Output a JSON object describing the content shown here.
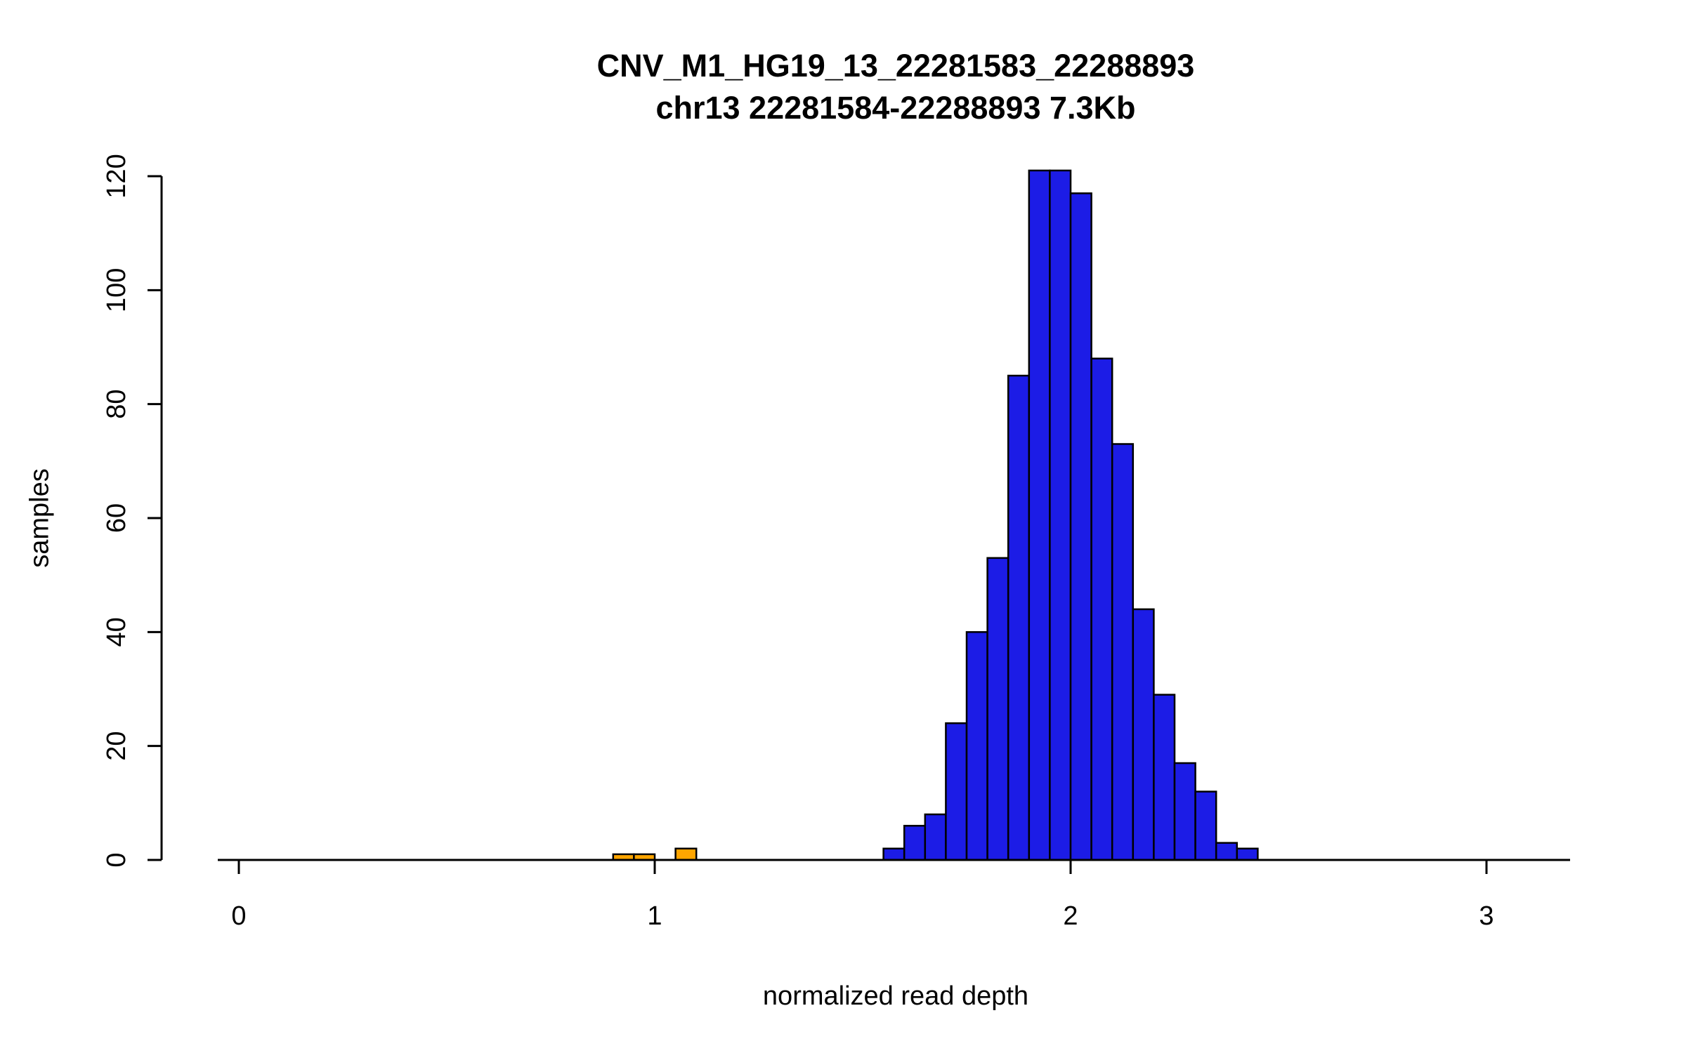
{
  "title": {
    "line1": "CNV_M1_HG19_13_22281583_22288893",
    "line2": "chr13 22281584-22288893 7.3Kb"
  },
  "axes": {
    "x": {
      "label": "normalized read depth",
      "ticks": [
        0,
        1,
        2,
        3
      ],
      "range": [
        -0.19,
        3.2
      ]
    },
    "y": {
      "label": "samples",
      "ticks": [
        0,
        20,
        40,
        60,
        80,
        100,
        120
      ],
      "range": [
        0,
        121
      ]
    }
  },
  "colors": {
    "normal_fill": "#1c1ce6",
    "outlier_fill": "#ffa500",
    "bar_border": "#000000",
    "axis": "#000000",
    "text": "#000000"
  },
  "chart_data": {
    "type": "bar",
    "subtype": "histogram",
    "title": "CNV_M1_HG19_13_22281583_22288893 / chr13 22281584-22288893 7.3Kb",
    "xlabel": "normalized read depth",
    "ylabel": "samples",
    "xlim": [
      -0.19,
      3.2
    ],
    "ylim": [
      0,
      121
    ],
    "grid": false,
    "legend": "none",
    "bin_width": 0.05,
    "bars": [
      {
        "x0": 0.9,
        "count": 1,
        "color": "outlier"
      },
      {
        "x0": 0.95,
        "count": 1,
        "color": "outlier"
      },
      {
        "x0": 1.05,
        "count": 2,
        "color": "outlier"
      },
      {
        "x0": 1.55,
        "count": 2,
        "color": "normal"
      },
      {
        "x0": 1.6,
        "count": 6,
        "color": "normal"
      },
      {
        "x0": 1.65,
        "count": 8,
        "color": "normal"
      },
      {
        "x0": 1.7,
        "count": 24,
        "color": "normal"
      },
      {
        "x0": 1.75,
        "count": 40,
        "color": "normal"
      },
      {
        "x0": 1.8,
        "count": 53,
        "color": "normal"
      },
      {
        "x0": 1.85,
        "count": 85,
        "color": "normal"
      },
      {
        "x0": 1.9,
        "count": 121,
        "color": "normal"
      },
      {
        "x0": 1.95,
        "count": 121,
        "color": "normal"
      },
      {
        "x0": 2.0,
        "count": 117,
        "color": "normal"
      },
      {
        "x0": 2.05,
        "count": 88,
        "color": "normal"
      },
      {
        "x0": 2.1,
        "count": 73,
        "color": "normal"
      },
      {
        "x0": 2.15,
        "count": 44,
        "color": "normal"
      },
      {
        "x0": 2.2,
        "count": 29,
        "color": "normal"
      },
      {
        "x0": 2.25,
        "count": 17,
        "color": "normal"
      },
      {
        "x0": 2.3,
        "count": 12,
        "color": "normal"
      },
      {
        "x0": 2.35,
        "count": 3,
        "color": "normal"
      },
      {
        "x0": 2.4,
        "count": 2,
        "color": "normal"
      }
    ]
  }
}
